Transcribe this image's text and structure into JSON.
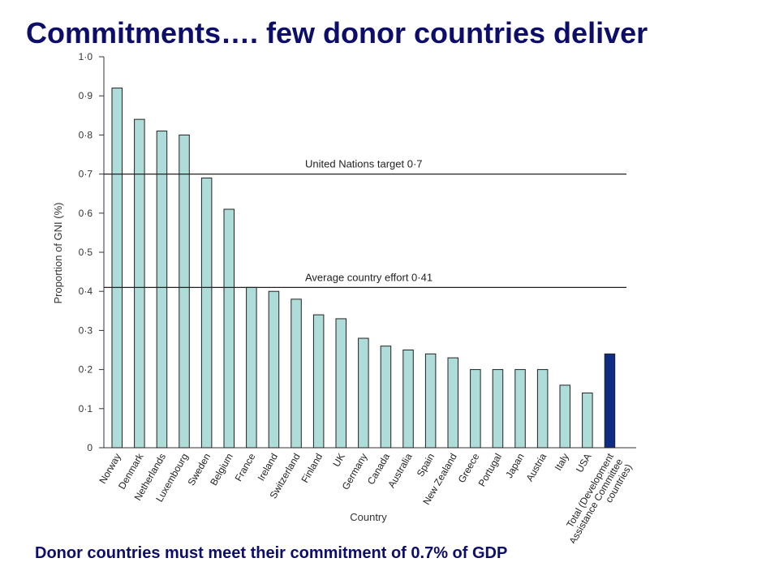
{
  "slide": {
    "title": "Commitments…. few donor countries deliver",
    "footer": "Donor countries must meet their commitment of 0.7% of GDP"
  },
  "chart_data": {
    "type": "bar",
    "xlabel": "Country",
    "ylabel": "Proportion of GNI (%)",
    "ylim": [
      0,
      1.0
    ],
    "yticks": [
      "0",
      "0·1",
      "0·2",
      "0·3",
      "0·4",
      "0·5",
      "0·6",
      "0·7",
      "0·8",
      "0·9",
      "1·0"
    ],
    "categories": [
      "Norway",
      "Denmark",
      "Netherlands",
      "Luxembourg",
      "Sweden",
      "Belgium",
      "France",
      "Ireland",
      "Switzerland",
      "Finland",
      "UK",
      "Germany",
      "Canada",
      "Australia",
      "Spain",
      "New Zealand",
      "Greece",
      "Portugal",
      "Japan",
      "Austria",
      "Italy",
      "USA",
      "Total (Development\nAssistance Committee\ncountries)"
    ],
    "values": [
      0.92,
      0.84,
      0.81,
      0.8,
      0.69,
      0.61,
      0.41,
      0.4,
      0.38,
      0.34,
      0.33,
      0.28,
      0.26,
      0.25,
      0.24,
      0.23,
      0.2,
      0.2,
      0.2,
      0.2,
      0.16,
      0.14,
      0.24
    ],
    "colors": {
      "bar": "#aedcd8",
      "highlight": "#0e2b85",
      "stroke": "#222222"
    },
    "highlight_index": 22,
    "reference_lines": [
      {
        "value": 0.7,
        "label": "United Nations target 0·7"
      },
      {
        "value": 0.41,
        "label": "Average country effort 0·41"
      }
    ],
    "grid": false,
    "legend": "none"
  }
}
